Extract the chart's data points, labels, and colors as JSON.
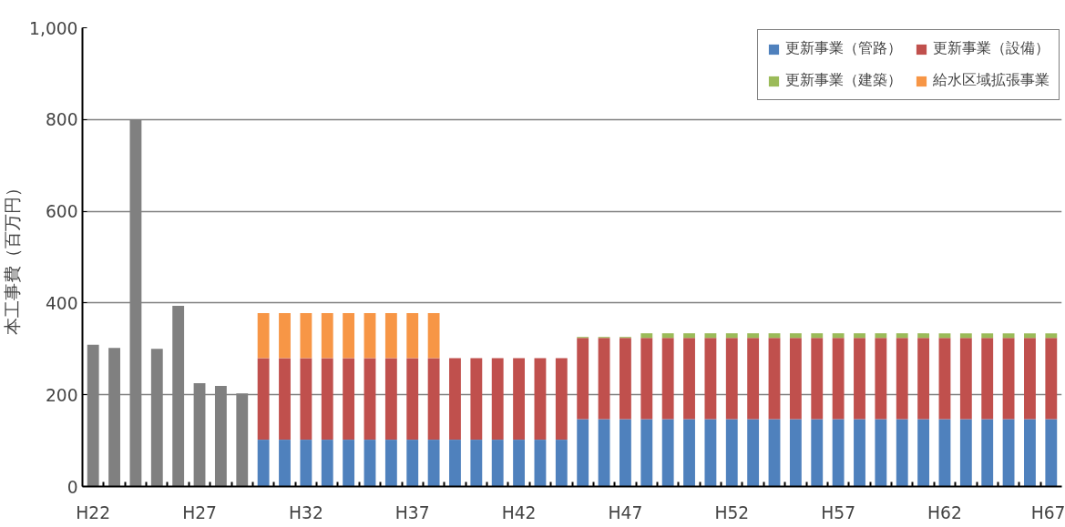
{
  "chart_data": {
    "type": "bar",
    "stacked": true,
    "ylabel": "本工事費（百万円）",
    "categories": [
      "H22",
      null,
      null,
      null,
      null,
      "H27",
      null,
      null,
      null,
      null,
      "H32",
      null,
      null,
      null,
      null,
      "H37",
      null,
      null,
      null,
      null,
      "H42",
      null,
      null,
      null,
      null,
      "H47",
      null,
      null,
      null,
      null,
      "H52",
      null,
      null,
      null,
      null,
      "H57",
      null,
      null,
      null,
      null,
      "H62",
      null,
      null,
      null,
      null,
      "H67"
    ],
    "series": [
      {
        "color": "#808080",
        "values": [
          309,
          302,
          800,
          300,
          394,
          225,
          219,
          203,
          null,
          null,
          null,
          null,
          null,
          null,
          null,
          null,
          null,
          null,
          null,
          null,
          null,
          null,
          null,
          null,
          null,
          null,
          null,
          null,
          null,
          null,
          null,
          null,
          null,
          null,
          null,
          null,
          null,
          null,
          null,
          null,
          null,
          null,
          null,
          null,
          null,
          null
        ]
      },
      {
        "name": "更新事業（管路）",
        "color": "#4f81bd",
        "values": [
          null,
          null,
          null,
          null,
          null,
          null,
          null,
          null,
          102,
          102,
          102,
          102,
          102,
          102,
          102,
          102,
          102,
          102,
          102,
          102,
          102,
          102,
          102,
          147,
          147,
          147,
          147,
          147,
          147,
          147,
          147,
          147,
          147,
          147,
          147,
          147,
          147,
          147,
          147,
          147,
          147,
          147,
          147,
          147,
          147,
          147
        ]
      },
      {
        "name": "更新事業（設備）",
        "color": "#c0504d",
        "values": [
          null,
          null,
          null,
          null,
          null,
          null,
          null,
          null,
          178,
          178,
          178,
          178,
          178,
          178,
          178,
          178,
          178,
          178,
          178,
          178,
          178,
          178,
          178,
          177,
          177,
          177,
          177,
          177,
          177,
          177,
          177,
          177,
          177,
          177,
          177,
          177,
          177,
          177,
          177,
          177,
          177,
          177,
          177,
          177,
          177,
          177
        ]
      },
      {
        "name": "更新事業（建築）",
        "color": "#9bbb59",
        "values": [
          null,
          null,
          null,
          null,
          null,
          null,
          null,
          null,
          null,
          null,
          null,
          null,
          null,
          null,
          null,
          null,
          null,
          null,
          null,
          null,
          null,
          null,
          null,
          2,
          2,
          2,
          10,
          10,
          10,
          10,
          10,
          10,
          10,
          10,
          10,
          10,
          10,
          10,
          10,
          10,
          10,
          10,
          10,
          10,
          10,
          10
        ]
      },
      {
        "name": "給水区域拡張事業",
        "color": "#f79646",
        "values": [
          null,
          null,
          null,
          null,
          null,
          null,
          null,
          null,
          98,
          98,
          98,
          98,
          98,
          98,
          98,
          98,
          98,
          null,
          null,
          null,
          null,
          null,
          null,
          null,
          null,
          null,
          null,
          null,
          null,
          null,
          null,
          null,
          null,
          null,
          null,
          null,
          null,
          null,
          null,
          null,
          null,
          null,
          null,
          null,
          null,
          null
        ]
      }
    ],
    "ylim": [
      0,
      1000
    ],
    "yticks": [
      0,
      200,
      400,
      600,
      800,
      {
        "value": 1000,
        "label": "1,000"
      }
    ],
    "grid": "y",
    "legend": "top right"
  }
}
